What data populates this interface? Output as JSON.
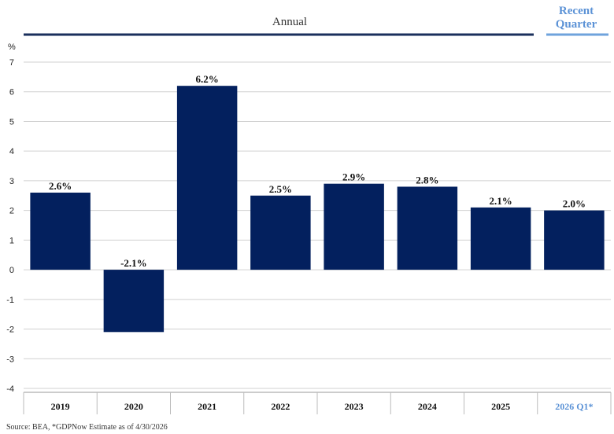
{
  "header": {
    "annual_label": "Annual",
    "recent_label_line1": "Recent",
    "recent_label_line2": "Quarter"
  },
  "footer": {
    "source": "Source: BEA, *GDPNow Estimate as of 4/30/2026"
  },
  "colors": {
    "bar": "#03205e",
    "annual_rule": "#1a2f5c",
    "recent_rule": "#6fa3dc",
    "recent_text": "#5b92d6",
    "grid": "#d0d0d0"
  },
  "chart_data": {
    "type": "bar",
    "ylabel": "%",
    "ylim": [
      -4,
      7
    ],
    "yticks": [
      -4,
      -3,
      -2,
      -1,
      0,
      1,
      2,
      3,
      4,
      5,
      6,
      7
    ],
    "grid": true,
    "categories": [
      "2019",
      "2020",
      "2021",
      "2022",
      "2023",
      "2024",
      "2025",
      "2026 Q1*"
    ],
    "values": [
      2.6,
      -2.1,
      6.2,
      2.5,
      2.9,
      2.8,
      2.1,
      2.0
    ],
    "data_labels": [
      "2.6%",
      "-2.1%",
      "6.2%",
      "2.5%",
      "2.9%",
      "2.8%",
      "2.1%",
      "2.0%"
    ]
  }
}
